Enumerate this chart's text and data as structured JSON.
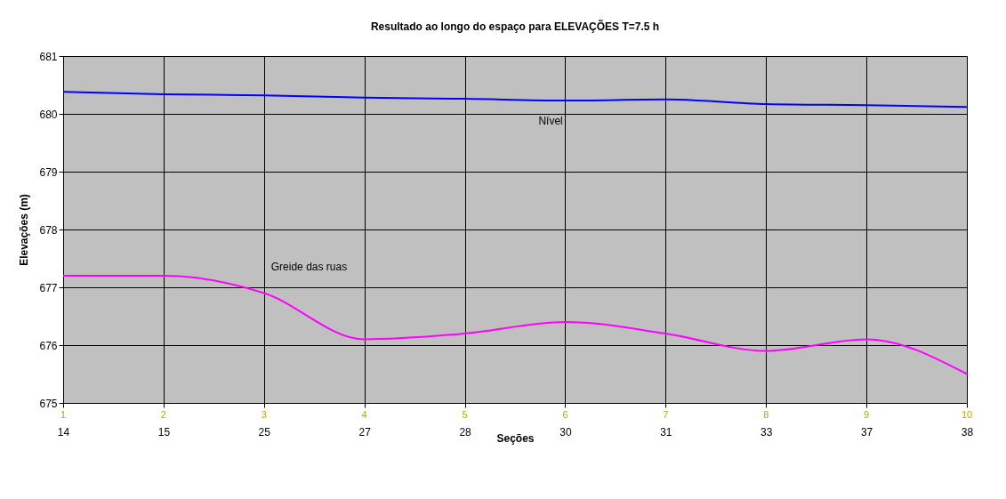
{
  "chart_data": {
    "type": "line",
    "title": "Resultado ao longo do espaço para ELEVAÇÕES T=7.5 h",
    "xlabel": "Seções",
    "ylabel": "Elevações (m)",
    "categories": [
      "14",
      "15",
      "25",
      "27",
      "28",
      "30",
      "31",
      "33",
      "37",
      "38"
    ],
    "series": [
      {
        "name": "Nível",
        "color": "#0000ff",
        "values": [
          680.38,
          680.34,
          680.32,
          680.28,
          680.26,
          680.23,
          680.25,
          680.17,
          680.15,
          680.12
        ]
      },
      {
        "name": "Greide das ruas",
        "color": "#ff00ff",
        "values": [
          677.2,
          677.2,
          676.9,
          676.1,
          676.2,
          676.4,
          676.2,
          675.9,
          676.1,
          675.5
        ]
      }
    ],
    "ylim": [
      675,
      681
    ],
    "yticks": [
      675,
      676,
      677,
      678,
      679,
      680,
      681
    ],
    "grid": true,
    "marker": "none",
    "line_style": "solid",
    "annotations": [
      "1",
      "2",
      "3",
      "4",
      "5",
      "6",
      "7",
      "8",
      "9",
      "10"
    ]
  }
}
